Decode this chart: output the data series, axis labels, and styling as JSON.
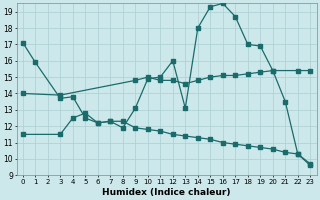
{
  "xlabel": "Humidex (Indice chaleur)",
  "bg_color": "#cde8ea",
  "grid_color": "#aacfd2",
  "line_color": "#1a6b6b",
  "xlim": [
    -0.5,
    23.5
  ],
  "ylim": [
    9,
    19.5
  ],
  "yticks": [
    9,
    10,
    11,
    12,
    13,
    14,
    15,
    16,
    17,
    18,
    19
  ],
  "xticks": [
    0,
    1,
    2,
    3,
    4,
    5,
    6,
    7,
    8,
    9,
    10,
    11,
    12,
    13,
    14,
    15,
    16,
    17,
    18,
    19,
    20,
    21,
    22,
    23
  ],
  "series1_x": [
    0,
    1,
    3,
    4,
    5,
    6,
    7,
    8,
    9,
    10,
    11,
    12,
    13,
    14,
    15,
    16,
    17,
    18,
    19,
    20,
    21,
    22,
    23
  ],
  "series1_y": [
    17.1,
    15.9,
    13.7,
    13.8,
    12.5,
    12.2,
    12.3,
    11.9,
    13.1,
    14.9,
    15.0,
    16.0,
    13.1,
    18.0,
    19.3,
    19.5,
    18.7,
    17.0,
    16.9,
    15.4,
    13.5,
    10.3,
    9.6
  ],
  "series2_x": [
    0,
    3,
    9,
    10,
    11,
    12,
    13,
    14,
    15,
    16,
    17,
    18,
    19,
    20,
    22,
    23
  ],
  "series2_y": [
    14.0,
    13.9,
    14.8,
    15.0,
    14.8,
    14.8,
    14.6,
    14.8,
    15.0,
    15.1,
    15.1,
    15.2,
    15.3,
    15.4,
    15.4,
    15.4
  ],
  "series3_x": [
    0,
    3,
    4,
    5,
    6,
    7,
    8,
    9,
    10,
    11,
    12,
    13,
    14,
    15,
    16,
    17,
    18,
    19,
    20,
    21,
    22,
    23
  ],
  "series3_y": [
    11.5,
    11.5,
    12.5,
    12.8,
    12.2,
    12.3,
    12.3,
    11.9,
    11.8,
    11.7,
    11.5,
    11.4,
    11.3,
    11.2,
    11.0,
    10.9,
    10.8,
    10.7,
    10.6,
    10.4,
    10.3,
    9.7
  ]
}
